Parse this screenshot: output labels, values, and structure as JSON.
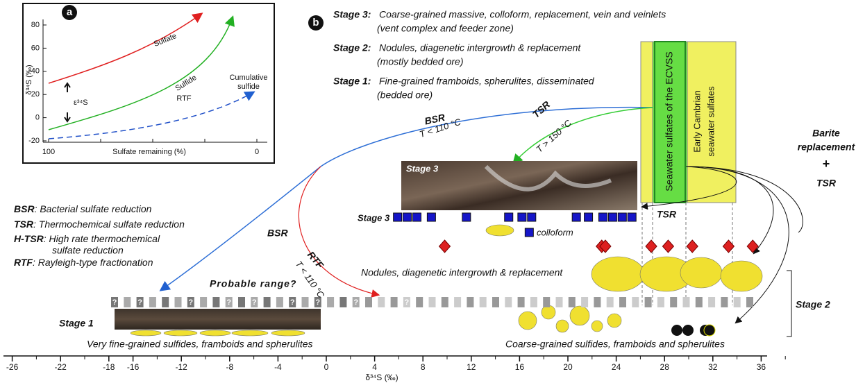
{
  "panel_a": {
    "label": "a",
    "y_axis_label": "δ³⁴S (‰)",
    "x_axis_label": "Sulfate remaining (%)",
    "yticks": [
      80,
      60,
      40,
      20,
      0,
      -20
    ],
    "xticks": [
      100,
      0
    ],
    "sulfate_label": "Sulfate",
    "sulfide_label": "Sulfide",
    "rtf_label": "RTF",
    "cumulative_label": [
      "Cumulative",
      "sulfide"
    ],
    "epsilon_label": "ε³⁴S"
  },
  "panel_b": {
    "label": "b",
    "stages": [
      {
        "name": "Stage 3:",
        "lines": [
          "Coarse-grained massive, colloform, replacement, vein and veinlets",
          "(vent complex and feeder zone)"
        ]
      },
      {
        "name": "Stage 2:",
        "lines": [
          "Nodules, diagenetic intergrowth & replacement",
          "(mostly bedded ore)"
        ]
      },
      {
        "name": "Stage 1:",
        "lines": [
          "Fine-grained framboids, spherulites, disseminated",
          "(bedded ore)"
        ]
      }
    ],
    "seawater_ecvss": "Seawater sulfates of the ECVSS",
    "early_cambrian": [
      "Early Cambrian",
      "seawater sulfates"
    ],
    "bsr_upper": {
      "name": "BSR",
      "temp": "T < 110 °C"
    },
    "tsr_upper": {
      "name": "TSR",
      "temp": "T > 150 °C"
    },
    "barite": [
      "Barite",
      "replacement",
      "+",
      "TSR"
    ],
    "photo_stage3": "Stage 3",
    "row_stage3": "Stage 3",
    "stage3_samples": [
      5.9,
      6.7,
      7.5,
      8.7,
      11.6,
      15.1,
      16.2,
      17.0,
      20.7,
      21.7,
      22.9,
      23.7,
      24.5,
      25.3
    ],
    "colloform_sample": 16.8,
    "colloform": "colloform",
    "diamond_samples": [
      9.8,
      22.8,
      23.1,
      26.9,
      28.3,
      30.3,
      33.3,
      35.3
    ],
    "tsr_lower": "TSR",
    "bsr_lower": "BSR",
    "rtf": {
      "name": "RTF",
      "temp": "T < 110 °C"
    },
    "nodules": "Nodules, diagenetic intergrowth & replacement",
    "probable_range": "Probable range?",
    "question": "?",
    "stage1": "Stage 1",
    "very_fine": "Very fine-grained sulfides, framboids and spherulites",
    "coarse": "Coarse-grained sulfides, framboids and spherulites",
    "stage2": "Stage 2",
    "legend": [
      {
        "abbr": "BSR",
        "lines": [
          ": Bacterial sulfate reduction"
        ]
      },
      {
        "abbr": "TSR",
        "lines": [
          ": Thermochemical sulfate reduction"
        ]
      },
      {
        "abbr": "H-TSR",
        "lines": [
          ": High rate thermochemical",
          "sulfate reduction"
        ]
      },
      {
        "abbr": "RTF",
        "lines": [
          ": Rayleigh-type fractionation"
        ]
      }
    ],
    "x_axis_label": "δ³⁴S (‰)",
    "xticks": [
      -26,
      -22,
      -18,
      -16,
      -12,
      -8,
      -4,
      0,
      4,
      8,
      12,
      16,
      20,
      24,
      28,
      32,
      36
    ]
  }
}
